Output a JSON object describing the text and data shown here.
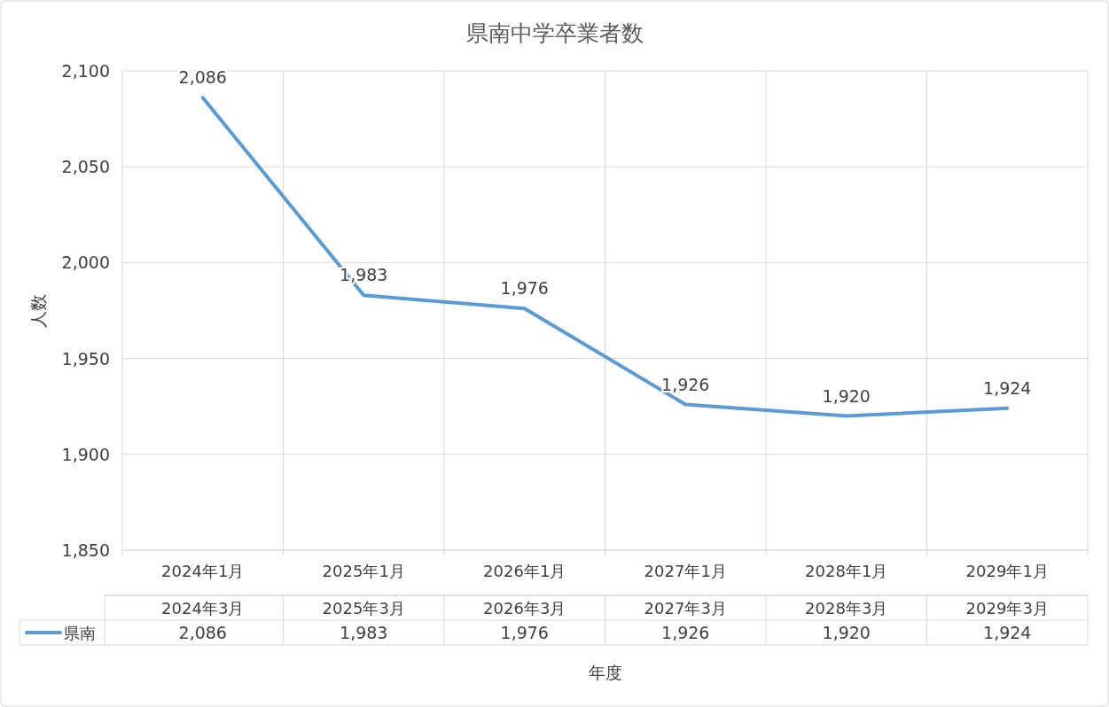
{
  "chart_data": {
    "type": "line",
    "title": "県南中学卒業者数",
    "xlabel": "年度",
    "ylabel": "人数",
    "categories": [
      "2024年1月",
      "2025年1月",
      "2026年1月",
      "2027年1月",
      "2028年1月",
      "2029年1月"
    ],
    "series": [
      {
        "name": "県南",
        "color": "#5b9bd5",
        "values": [
          2086,
          1983,
          1976,
          1926,
          1920,
          1924
        ],
        "value_labels": [
          "2,086",
          "1,983",
          "1,976",
          "1,926",
          "1,920",
          "1,924"
        ]
      }
    ],
    "ylim": [
      1850,
      2100
    ],
    "yticks": [
      {
        "value": 1850,
        "label": "1,850"
      },
      {
        "value": 1900,
        "label": "1,900"
      },
      {
        "value": 1950,
        "label": "1,950"
      },
      {
        "value": 2000,
        "label": "2,000"
      },
      {
        "value": 2050,
        "label": "2,050"
      },
      {
        "value": 2100,
        "label": "2,100"
      }
    ],
    "annotations": [
      "2024年3月",
      "2025年3月",
      "2026年3月",
      "2027年3月",
      "2028年3月",
      "2029年3月"
    ],
    "grid": true,
    "legend": "bottom",
    "marker": "none",
    "line_style": "solid"
  }
}
